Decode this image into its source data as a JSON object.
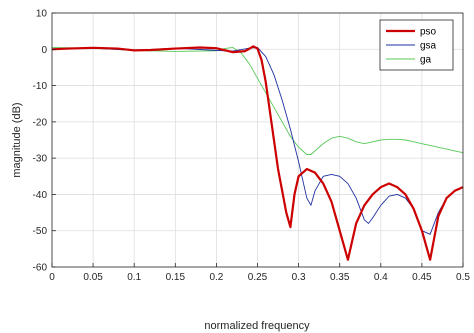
{
  "chart_data": {
    "type": "line",
    "title": "",
    "xlabel": "normalized frequency",
    "ylabel": "magnitude (dB)",
    "xlim": [
      0,
      0.5
    ],
    "ylim": [
      -60,
      10
    ],
    "x_ticks": [
      0,
      0.05,
      0.1,
      0.15,
      0.2,
      0.25,
      0.3,
      0.35,
      0.4,
      0.45,
      0.5
    ],
    "x_tick_labels": [
      "0",
      "0.05",
      "0.1",
      "0.15",
      "0.2",
      "0.25",
      "0.3",
      "0.35",
      "0.4",
      "0.45",
      "0.5"
    ],
    "y_ticks": [
      10,
      0,
      -10,
      -20,
      -30,
      -40,
      -50,
      -60
    ],
    "y_tick_labels": [
      "10",
      "0",
      "-10",
      "-20",
      "-30",
      "-40",
      "-50",
      "-60"
    ],
    "grid": true,
    "legend_position": "top-right",
    "series": [
      {
        "name": "pso",
        "color": "#cc0000",
        "x": [
          0,
          0.02,
          0.05,
          0.08,
          0.1,
          0.12,
          0.15,
          0.18,
          0.2,
          0.22,
          0.235,
          0.245,
          0.25,
          0.255,
          0.26,
          0.265,
          0.27,
          0.275,
          0.28,
          0.285,
          0.29,
          0.295,
          0.3,
          0.31,
          0.32,
          0.33,
          0.34,
          0.35,
          0.36,
          0.37,
          0.38,
          0.39,
          0.4,
          0.41,
          0.42,
          0.43,
          0.44,
          0.45,
          0.46,
          0.47,
          0.48,
          0.49,
          0.5
        ],
        "y": [
          0,
          0.2,
          0.4,
          0.2,
          -0.3,
          -0.2,
          0.2,
          0.5,
          0.3,
          -0.8,
          -0.5,
          0.8,
          0.2,
          -3,
          -9,
          -17,
          -25,
          -33,
          -39,
          -45,
          -49,
          -40,
          -35,
          -33,
          -34,
          -37,
          -42,
          -50,
          -58,
          -48,
          -43,
          -40,
          -38,
          -37,
          -38,
          -40,
          -44,
          -50,
          -58,
          -46,
          -41,
          -39,
          -38
        ]
      },
      {
        "name": "gsa",
        "color": "#1f2fa0",
        "x": [
          0,
          0.05,
          0.1,
          0.15,
          0.2,
          0.22,
          0.24,
          0.25,
          0.26,
          0.27,
          0.28,
          0.29,
          0.3,
          0.31,
          0.315,
          0.32,
          0.33,
          0.34,
          0.35,
          0.36,
          0.37,
          0.38,
          0.385,
          0.39,
          0.4,
          0.41,
          0.42,
          0.43,
          0.44,
          0.45,
          0.46,
          0.47,
          0.48,
          0.49,
          0.5
        ],
        "y": [
          0,
          0.3,
          -0.3,
          0.3,
          -0.3,
          -0.5,
          0.3,
          0.5,
          -2,
          -7,
          -14,
          -22,
          -31,
          -41,
          -43,
          -39,
          -35,
          -34.5,
          -35,
          -37,
          -41,
          -47,
          -48,
          -46.5,
          -43,
          -40.5,
          -40,
          -41,
          -44,
          -50,
          -51,
          -45,
          -41,
          -39,
          -38
        ]
      },
      {
        "name": "ga",
        "color": "#58c958",
        "x": [
          0,
          0.05,
          0.1,
          0.15,
          0.2,
          0.21,
          0.22,
          0.23,
          0.24,
          0.25,
          0.26,
          0.27,
          0.28,
          0.29,
          0.3,
          0.31,
          0.315,
          0.32,
          0.33,
          0.34,
          0.35,
          0.36,
          0.37,
          0.38,
          0.39,
          0.4,
          0.41,
          0.42,
          0.43,
          0.44,
          0.45,
          0.46,
          0.47,
          0.48,
          0.49,
          0.5
        ],
        "y": [
          0.5,
          0.3,
          -0.3,
          -0.6,
          -0.4,
          0.2,
          0.5,
          -1,
          -4,
          -8,
          -12,
          -16,
          -20,
          -24,
          -27,
          -29,
          -29,
          -28,
          -26,
          -24.5,
          -24,
          -24.5,
          -25.5,
          -26,
          -25.5,
          -25,
          -24.8,
          -24.8,
          -25,
          -25.5,
          -26,
          -26.5,
          -27,
          -27.5,
          -28,
          -28.5
        ]
      }
    ]
  }
}
